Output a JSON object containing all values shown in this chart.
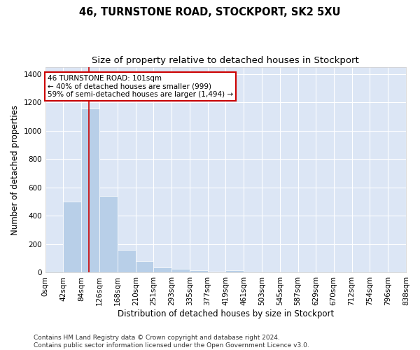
{
  "title": "46, TURNSTONE ROAD, STOCKPORT, SK2 5XU",
  "subtitle": "Size of property relative to detached houses in Stockport",
  "xlabel": "Distribution of detached houses by size in Stockport",
  "ylabel": "Number of detached properties",
  "bar_color": "#b8cfe8",
  "bar_edge_color": "#ffffff",
  "background_color": "#dce6f5",
  "grid_color": "#ffffff",
  "annotation_text": "46 TURNSTONE ROAD: 101sqm\n← 40% of detached houses are smaller (999)\n59% of semi-detached houses are larger (1,494) →",
  "annotation_box_facecolor": "#ffffff",
  "annotation_box_edge_color": "#cc0000",
  "vline_x": 101,
  "vline_color": "#cc0000",
  "bin_edges": [
    0,
    42,
    84,
    126,
    168,
    210,
    251,
    293,
    335,
    377,
    419,
    461,
    503,
    545,
    587,
    629,
    670,
    712,
    754,
    796,
    838
  ],
  "bin_labels": [
    "0sqm",
    "42sqm",
    "84sqm",
    "126sqm",
    "168sqm",
    "210sqm",
    "251sqm",
    "293sqm",
    "335sqm",
    "377sqm",
    "419sqm",
    "461sqm",
    "503sqm",
    "545sqm",
    "587sqm",
    "629sqm",
    "670sqm",
    "712sqm",
    "754sqm",
    "796sqm",
    "838sqm"
  ],
  "bar_heights": [
    10,
    500,
    1155,
    538,
    162,
    80,
    35,
    27,
    15,
    8,
    15,
    0,
    0,
    0,
    0,
    0,
    0,
    0,
    0,
    0
  ],
  "ylim": [
    0,
    1450
  ],
  "yticks": [
    0,
    200,
    400,
    600,
    800,
    1000,
    1200,
    1400
  ],
  "footer_text": "Contains HM Land Registry data © Crown copyright and database right 2024.\nContains public sector information licensed under the Open Government Licence v3.0.",
  "title_fontsize": 10.5,
  "subtitle_fontsize": 9.5,
  "xlabel_fontsize": 8.5,
  "ylabel_fontsize": 8.5,
  "tick_fontsize": 7.5,
  "annotation_fontsize": 7.5,
  "footer_fontsize": 6.5,
  "fig_width": 6.0,
  "fig_height": 5.0,
  "fig_dpi": 100
}
